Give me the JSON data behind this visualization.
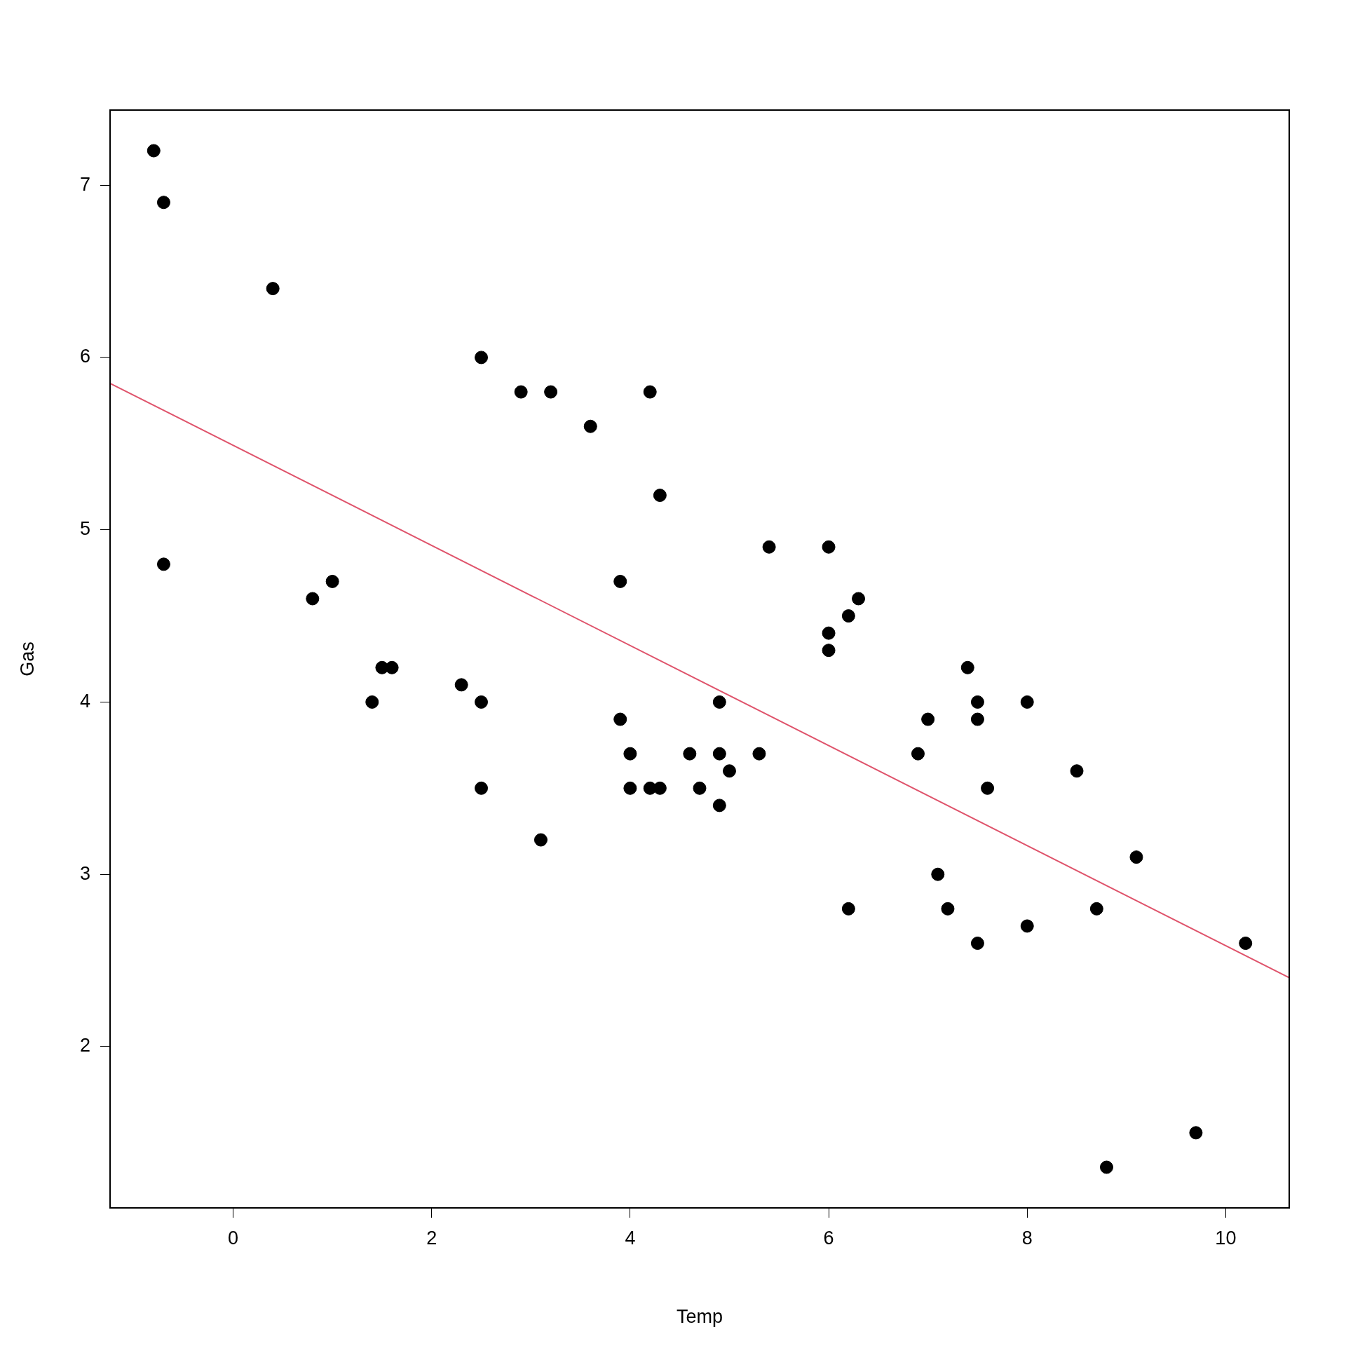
{
  "chart_data": {
    "type": "scatter",
    "xlabel": "Temp",
    "ylabel": "Gas",
    "xlim": [
      -1.24,
      10.64
    ],
    "ylim": [
      1.064,
      7.436
    ],
    "xticks": [
      0,
      2,
      4,
      6,
      8,
      10
    ],
    "yticks": [
      2,
      3,
      4,
      5,
      6,
      7
    ],
    "grid": false,
    "legend": false,
    "marker": "circle",
    "series": [
      {
        "type": "scatter",
        "color": "#000000",
        "x": [
          -0.8,
          -0.7,
          -0.7,
          0.4,
          0.8,
          1.0,
          1.4,
          1.5,
          1.6,
          2.3,
          2.5,
          2.5,
          2.5,
          2.9,
          3.2,
          3.1,
          3.6,
          3.9,
          3.9,
          4.0,
          4.0,
          4.2,
          4.3,
          4.2,
          4.3,
          4.6,
          4.7,
          4.9,
          4.9,
          4.9,
          5.0,
          5.3,
          5.4,
          6.0,
          6.0,
          6.0,
          6.2,
          6.3,
          6.2,
          6.9,
          7.0,
          7.1,
          7.2,
          7.4,
          7.5,
          7.5,
          7.5,
          7.6,
          8.0,
          8.0,
          8.5,
          8.7,
          9.1,
          8.8,
          9.7,
          10.2
        ],
        "values": [
          7.2,
          6.9,
          4.8,
          6.4,
          4.6,
          4.7,
          4.0,
          4.2,
          4.2,
          4.1,
          6.0,
          4.0,
          3.5,
          5.8,
          5.8,
          3.2,
          5.6,
          4.7,
          3.9,
          3.7,
          3.5,
          5.8,
          5.2,
          3.5,
          3.5,
          3.7,
          3.5,
          4.0,
          3.7,
          3.4,
          3.6,
          3.7,
          4.9,
          4.9,
          4.4,
          4.3,
          4.5,
          4.6,
          2.8,
          3.7,
          3.9,
          3.0,
          2.8,
          4.2,
          4.0,
          3.9,
          2.6,
          3.5,
          4.0,
          2.7,
          3.6,
          2.8,
          3.1,
          1.3,
          1.5,
          2.6
        ]
      },
      {
        "type": "line",
        "marker": "none",
        "color": "#df536b",
        "x": [
          -1.24,
          10.64
        ],
        "values": [
          5.85,
          2.4
        ]
      }
    ]
  }
}
